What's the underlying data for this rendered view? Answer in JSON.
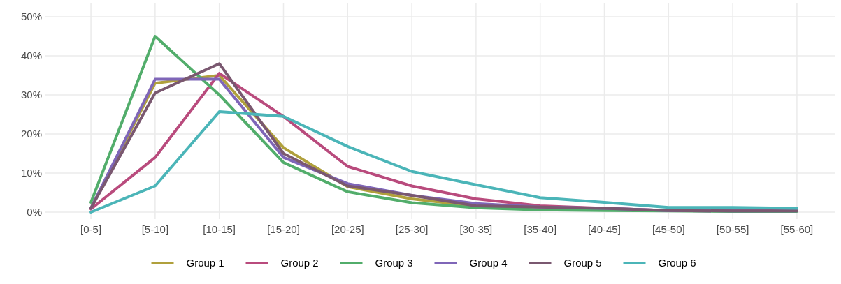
{
  "chart_data": {
    "type": "line",
    "categories": [
      "[0-5]",
      "[5-10]",
      "[10-15]",
      "[15-20]",
      "[20-25]",
      "[25-30]",
      "[30-35]",
      "[35-40]",
      "[40-45]",
      "[45-50]",
      "[50-55]",
      "[55-60]"
    ],
    "ylim": [
      0,
      50
    ],
    "yticks": [
      {
        "value": 0,
        "label": "0%"
      },
      {
        "value": 10,
        "label": "10%"
      },
      {
        "value": 20,
        "label": "20%"
      },
      {
        "value": 30,
        "label": "30%"
      },
      {
        "value": 40,
        "label": "40%"
      },
      {
        "value": 50,
        "label": "50%"
      }
    ],
    "grid": true,
    "legend": "bottom",
    "line_style": "solid",
    "marker": "none",
    "series": [
      {
        "name": "Group 1",
        "color": "#b0a03c",
        "values": [
          1,
          33,
          35,
          16.5,
          6.5,
          3.4,
          1.5,
          1.3,
          null,
          null,
          null,
          null
        ]
      },
      {
        "name": "Group 2",
        "color": "#b94b7d",
        "values": [
          0.8,
          14,
          35.5,
          24.5,
          11.7,
          6.7,
          3.4,
          1.6,
          1,
          0.4,
          0.3,
          0.3
        ]
      },
      {
        "name": "Group 3",
        "color": "#52ad6b",
        "values": [
          2.5,
          45,
          30,
          12.7,
          5.2,
          2.4,
          1.1,
          0.6,
          0.4,
          0.3,
          0.2,
          0.2
        ]
      },
      {
        "name": "Group 4",
        "color": "#7f66b8",
        "values": [
          1,
          34,
          34,
          14,
          7.3,
          4.3,
          2.2,
          1.3,
          1,
          0.4,
          0.3,
          0.3
        ]
      },
      {
        "name": "Group 5",
        "color": "#7a5870",
        "values": [
          1,
          30.5,
          38,
          15,
          6.7,
          4.3,
          1.6,
          1.3,
          1,
          0.4,
          0.3,
          0.3
        ]
      },
      {
        "name": "Group 6",
        "color": "#4bb5b8",
        "values": [
          0,
          6.7,
          25.7,
          24.5,
          16.8,
          10.4,
          7,
          3.7,
          2.5,
          1.2,
          1.2,
          1
        ]
      }
    ]
  }
}
